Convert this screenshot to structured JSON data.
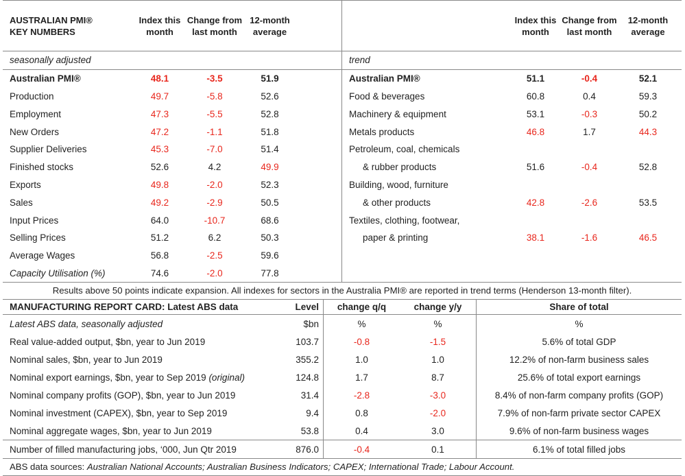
{
  "left": {
    "header": {
      "title_line1": "AUSTRALIAN PMI®",
      "title_line2": "KEY NUMBERS",
      "c1": "Index this month",
      "c2": "Change from last month",
      "c3": "12-month average"
    },
    "subtitle": "seasonally adjusted",
    "rows": [
      {
        "label": "Australian PMI®",
        "v1": "48.1",
        "v2": "-3.5",
        "v3": "51.9",
        "r1": true,
        "r2": true,
        "r3": false,
        "bold": true,
        "italic": false
      },
      {
        "label": "Production",
        "v1": "49.7",
        "v2": "-5.8",
        "v3": "52.6",
        "r1": true,
        "r2": true,
        "r3": false,
        "bold": false,
        "italic": false
      },
      {
        "label": "Employment",
        "v1": "47.3",
        "v2": "-5.5",
        "v3": "52.8",
        "r1": true,
        "r2": true,
        "r3": false,
        "bold": false,
        "italic": false
      },
      {
        "label": "New Orders",
        "v1": "47.2",
        "v2": "-1.1",
        "v3": "51.8",
        "r1": true,
        "r2": true,
        "r3": false,
        "bold": false,
        "italic": false
      },
      {
        "label": "Supplier Deliveries",
        "v1": "45.3",
        "v2": "-7.0",
        "v3": "51.4",
        "r1": true,
        "r2": true,
        "r3": false,
        "bold": false,
        "italic": false
      },
      {
        "label": "Finished stocks",
        "v1": "52.6",
        "v2": "4.2",
        "v3": "49.9",
        "r1": false,
        "r2": false,
        "r3": true,
        "bold": false,
        "italic": false
      },
      {
        "label": "Exports",
        "v1": "49.8",
        "v2": "-2.0",
        "v3": "52.3",
        "r1": true,
        "r2": true,
        "r3": false,
        "bold": false,
        "italic": false
      },
      {
        "label": "Sales",
        "v1": "49.2",
        "v2": "-2.9",
        "v3": "50.5",
        "r1": true,
        "r2": true,
        "r3": false,
        "bold": false,
        "italic": false
      },
      {
        "label": "Input Prices",
        "v1": "64.0",
        "v2": "-10.7",
        "v3": "68.6",
        "r1": false,
        "r2": true,
        "r3": false,
        "bold": false,
        "italic": false
      },
      {
        "label": "Selling Prices",
        "v1": "51.2",
        "v2": "6.2",
        "v3": "50.3",
        "r1": false,
        "r2": false,
        "r3": false,
        "bold": false,
        "italic": false
      },
      {
        "label": "Average Wages",
        "v1": "56.8",
        "v2": "-2.5",
        "v3": "59.6",
        "r1": false,
        "r2": true,
        "r3": false,
        "bold": false,
        "italic": false
      },
      {
        "label": "Capacity Utilisation (%)",
        "v1": "74.6",
        "v2": "-2.0",
        "v3": "77.8",
        "r1": false,
        "r2": true,
        "r3": false,
        "bold": false,
        "italic": true
      }
    ]
  },
  "right": {
    "header": {
      "c1": "Index this month",
      "c2": "Change from last month",
      "c3": "12-month average"
    },
    "subtitle": "trend",
    "rows": [
      {
        "label": "Australian PMI®",
        "v1": "51.1",
        "v2": "-0.4",
        "v3": "52.1",
        "r1": false,
        "r2": true,
        "r3": false,
        "bold": true
      },
      {
        "label": "Food & beverages",
        "v1": "60.8",
        "v2": "0.4",
        "v3": "59.3",
        "r1": false,
        "r2": false,
        "r3": false,
        "bold": false
      },
      {
        "label": "Machinery & equipment",
        "v1": "53.1",
        "v2": "-0.3",
        "v3": "50.2",
        "r1": false,
        "r2": true,
        "r3": false,
        "bold": false
      },
      {
        "label": "Metals products",
        "v1": "46.8",
        "v2": "1.7",
        "v3": "44.3",
        "r1": true,
        "r2": false,
        "r3": true,
        "bold": false
      },
      {
        "label": "Petroleum, coal, chemicals",
        "v1": "",
        "v2": "",
        "v3": "",
        "r1": false,
        "r2": false,
        "r3": false,
        "bold": false
      },
      {
        "label": "& rubber products",
        "v1": "51.6",
        "v2": "-0.4",
        "v3": "52.8",
        "r1": false,
        "r2": true,
        "r3": false,
        "bold": false,
        "indent": true
      },
      {
        "label": "Building, wood, furniture",
        "v1": "",
        "v2": "",
        "v3": "",
        "r1": false,
        "r2": false,
        "r3": false,
        "bold": false
      },
      {
        "label": "& other products",
        "v1": "42.8",
        "v2": "-2.6",
        "v3": "53.5",
        "r1": true,
        "r2": true,
        "r3": false,
        "bold": false,
        "indent": true
      },
      {
        "label": "Textiles, clothing, footwear,",
        "v1": "",
        "v2": "",
        "v3": "",
        "r1": false,
        "r2": false,
        "r3": false,
        "bold": false
      },
      {
        "label": "paper & printing",
        "v1": "38.1",
        "v2": "-1.6",
        "v3": "46.5",
        "r1": true,
        "r2": true,
        "r3": true,
        "bold": false,
        "indent": true
      }
    ]
  },
  "note": "Results above 50 points indicate expansion. All indexes for sectors in the Australia PMI® are reported in trend terms (Henderson 13-month filter).",
  "report_card": {
    "header": {
      "title": "MANUFACTURING REPORT CARD: Latest ABS data",
      "level": "Level",
      "q": "change q/q",
      "y": "change y/y",
      "share": "Share of total"
    },
    "units": {
      "label": "Latest ABS data, seasonally adjusted",
      "level": "$bn",
      "q": "%",
      "y": "%",
      "share": "%"
    },
    "rows": [
      {
        "label": "Real value-added output, $bn, year to Jun 2019",
        "label_suffix": "",
        "level": "103.7",
        "q": "-0.8",
        "y": "-1.5",
        "qr": true,
        "yr": true,
        "share": "5.6% of total GDP"
      },
      {
        "label": "Nominal sales, $bn, year to Jun 2019",
        "label_suffix": "",
        "level": "355.2",
        "q": "1.0",
        "y": "1.0",
        "qr": false,
        "yr": false,
        "share": "12.2% of non-farm business sales"
      },
      {
        "label": "Nominal export earnings, $bn, year to Sep 2019 ",
        "label_suffix": "(original)",
        "level": "124.8",
        "q": "1.7",
        "y": "8.7",
        "qr": false,
        "yr": false,
        "share": "25.6% of total export earnings"
      },
      {
        "label": "Nominal company profits (GOP), $bn, year to Jun 2019",
        "label_suffix": "",
        "level": "31.4",
        "q": "-2.8",
        "y": "-3.0",
        "qr": true,
        "yr": true,
        "share": "8.4% of non-farm company profits (GOP)"
      },
      {
        "label": "Nominal investment (CAPEX), $bn, year to Sep 2019",
        "label_suffix": "",
        "level": "9.4",
        "q": "0.8",
        "y": "-2.0",
        "qr": false,
        "yr": true,
        "share": "7.9% of non-farm private sector CAPEX"
      },
      {
        "label": "Nominal aggregate wages, $bn, year to Jun 2019",
        "label_suffix": "",
        "level": "53.8",
        "q": "0.4",
        "y": "3.0",
        "qr": false,
        "yr": false,
        "share": "9.6% of non-farm business wages"
      },
      {
        "label": "Number of filled manufacturing jobs, ‘000, Jun Qtr 2019",
        "label_suffix": "",
        "level": "876.0",
        "q": "-0.4",
        "y": "0.1",
        "qr": true,
        "yr": false,
        "share": "6.1% of total filled jobs"
      }
    ]
  },
  "footer": {
    "prefix": "ABS data sources: ",
    "sources": "Australian National Accounts; Australian Business Indicators; CAPEX; International Trade; Labour Account."
  },
  "colors": {
    "negative": "#e8261c",
    "text": "#222222",
    "rule": "#888888"
  }
}
